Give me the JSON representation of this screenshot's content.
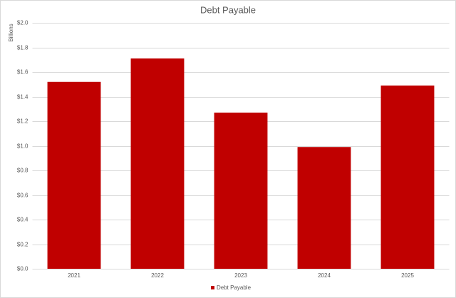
{
  "chart_data": {
    "type": "bar",
    "title": "Debt Payable",
    "y_label": "Billions",
    "categories": [
      "2021",
      "2022",
      "2023",
      "2024",
      "2025"
    ],
    "series": [
      {
        "name": "Debt Payable",
        "color": "#c00000",
        "values": [
          1.52,
          1.71,
          1.27,
          0.99,
          1.49
        ]
      }
    ],
    "ylim": [
      0,
      2
    ],
    "yticks": [
      {
        "value": 0,
        "label": "$0.0"
      },
      {
        "value": 0.2,
        "label": "$0.2"
      },
      {
        "value": 0.4,
        "label": "$0.4"
      },
      {
        "value": 0.6,
        "label": "$0.6"
      },
      {
        "value": 0.8,
        "label": "$0.8"
      },
      {
        "value": 1,
        "label": "$1.0"
      },
      {
        "value": 1.2,
        "label": "$1.2"
      },
      {
        "value": 1.4,
        "label": "$1.4"
      },
      {
        "value": 1.6,
        "label": "$1.6"
      },
      {
        "value": 1.8,
        "label": "$1.8"
      },
      {
        "value": 2,
        "label": "$2.0"
      }
    ],
    "grid": true,
    "legend": "bottom"
  }
}
